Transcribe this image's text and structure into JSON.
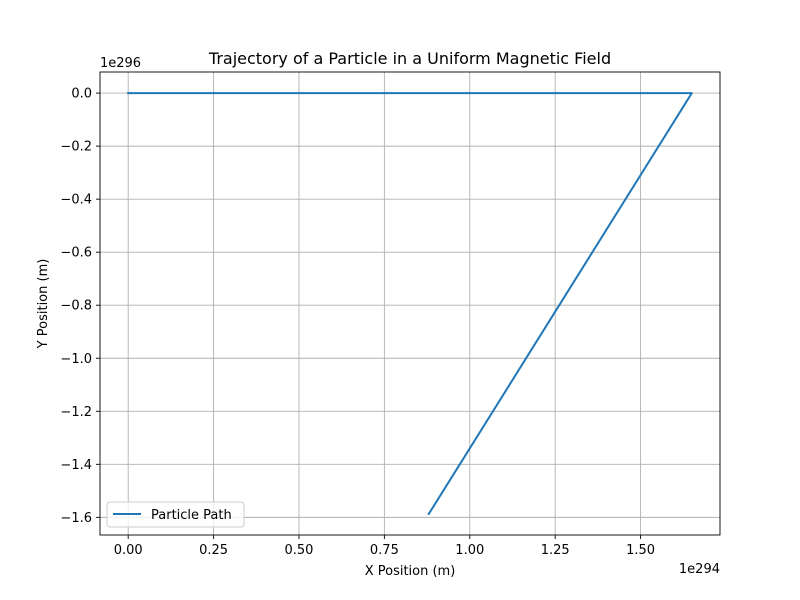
{
  "chart_data": {
    "type": "line",
    "title": "Trajectory of a Particle in a Uniform Magnetic Field",
    "xlabel": "X Position (m)",
    "ylabel": "Y Position (m)",
    "x_offset_label": "1e294",
    "y_offset_label": "1e296",
    "xlim": [
      -0.0825,
      1.7325
    ],
    "ylim": [
      -1.6665,
      0.0795
    ],
    "x_ticks": [
      0.0,
      0.25,
      0.5,
      0.75,
      1.0,
      1.25,
      1.5
    ],
    "x_tick_labels": [
      "0.00",
      "0.25",
      "0.50",
      "0.75",
      "1.00",
      "1.25",
      "1.50"
    ],
    "y_ticks": [
      0.0,
      -0.2,
      -0.4,
      -0.6,
      -0.8,
      -1.0,
      -1.2,
      -1.4,
      -1.6
    ],
    "y_tick_labels": [
      "0.0",
      "−0.2",
      "−0.4",
      "−0.6",
      "−0.8",
      "−1.0",
      "−1.2",
      "−1.4",
      "−1.6"
    ],
    "grid": true,
    "legend_position": "lower-left",
    "series": [
      {
        "name": "Particle Path",
        "color": "#1f77b4",
        "x": [
          0.0,
          1.65,
          0.88
        ],
        "y": [
          0.0,
          0.0,
          -1.587
        ]
      }
    ]
  }
}
